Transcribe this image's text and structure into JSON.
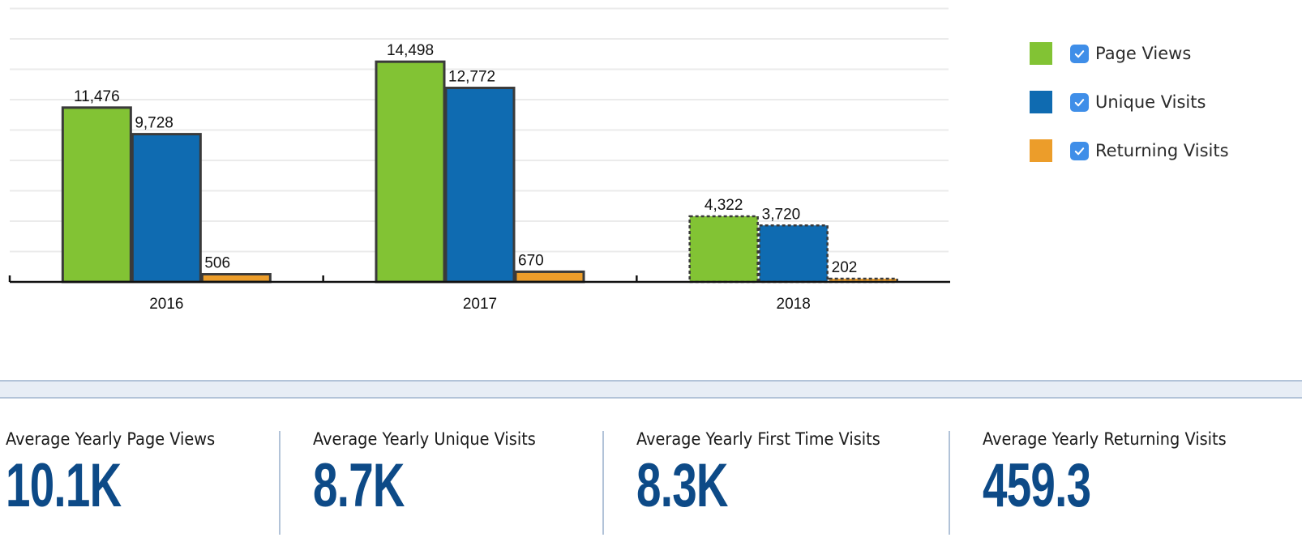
{
  "chart_data": {
    "type": "bar",
    "categories": [
      "2016",
      "2017",
      "2018"
    ],
    "series": [
      {
        "name": "Page Views",
        "color": "#82c334",
        "values": [
          11476,
          14498,
          4322
        ],
        "labels": [
          "11,476",
          "14,498",
          "4,322"
        ]
      },
      {
        "name": "Unique Visits",
        "color": "#0f6bb1",
        "values": [
          9728,
          12772,
          3720
        ],
        "labels": [
          "9,728",
          "12,772",
          "3,720"
        ]
      },
      {
        "name": "Returning Visits",
        "color": "#ec9d2a",
        "values": [
          506,
          670,
          202
        ],
        "labels": [
          "506",
          "670",
          "202"
        ]
      }
    ],
    "partial_category": "2018",
    "ylim": [
      0,
      18000
    ],
    "grid_step": 2000,
    "grid": true,
    "legend": "right",
    "title": "",
    "xlabel": "",
    "ylabel": ""
  },
  "legend": [
    {
      "label": "Page Views",
      "checked": true,
      "color": "#82c334"
    },
    {
      "label": "Unique Visits",
      "checked": true,
      "color": "#0f6bb1"
    },
    {
      "label": "Returning Visits",
      "checked": true,
      "color": "#ec9d2a"
    }
  ],
  "stats": [
    {
      "label": "Average Yearly Page Views",
      "value": "10.1K"
    },
    {
      "label": "Average Yearly Unique Visits",
      "value": "8.7K"
    },
    {
      "label": "Average Yearly First Time Visits",
      "value": "8.3K"
    },
    {
      "label": "Average Yearly Returning Visits",
      "value": "459.3"
    }
  ],
  "colors": {
    "stat_value": "#0d4a87",
    "band": "#e7edf5",
    "divider": "#b2c3d8",
    "checkbox": "#3f8ee8"
  }
}
